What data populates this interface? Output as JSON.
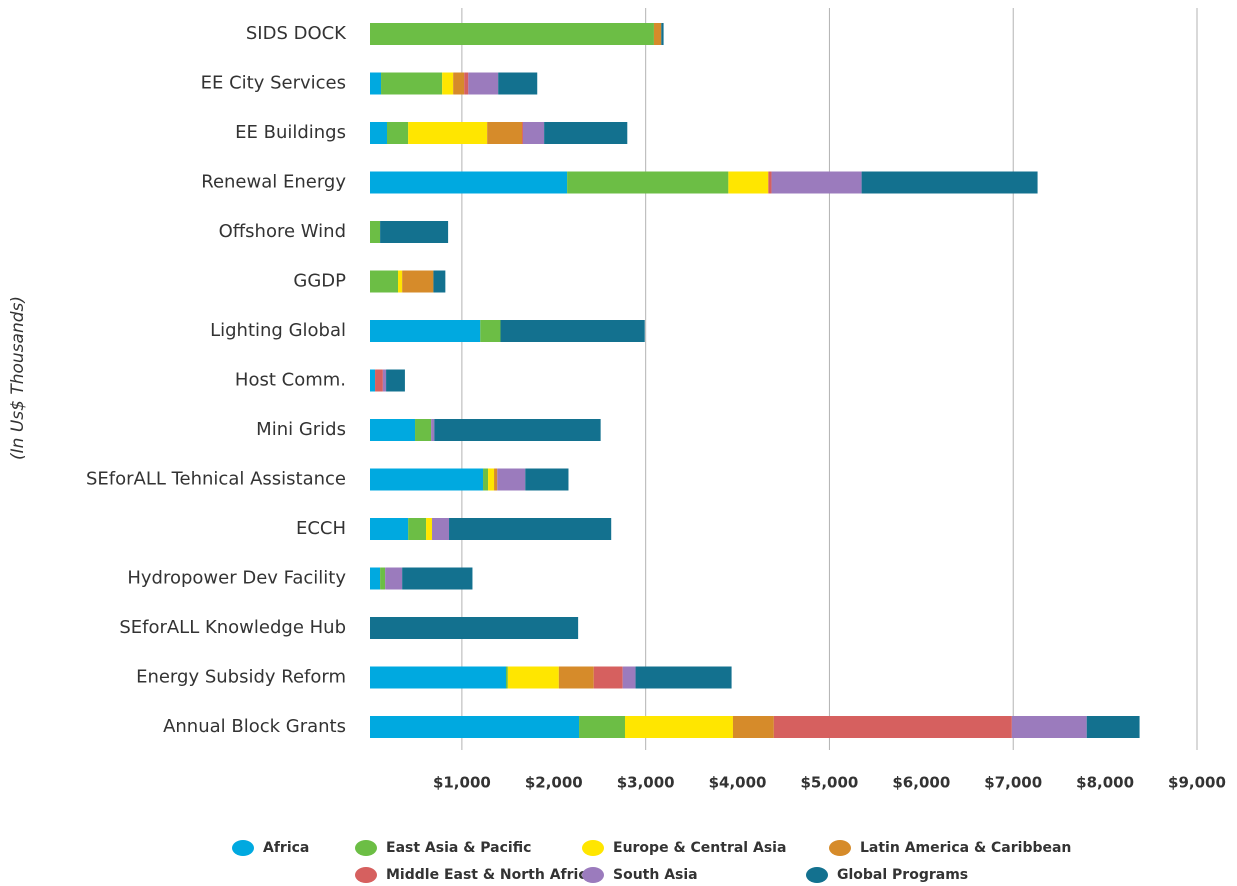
{
  "chart_data": {
    "type": "stacked-barh",
    "ylabel": "(In Us$ Thousands)",
    "categories": [
      "SIDS DOCK",
      "EE City Services",
      "EE Buildings",
      "Renewal Energy",
      "Offshore Wind",
      "GGDP",
      "Lighting Global",
      "Host Comm.",
      "Mini Grids",
      "SEforALL Tehnical Assistance",
      "ECCH",
      "Hydropower Dev Facility",
      "SEforALL Knowledge Hub",
      "Energy Subsidy Reform",
      "Annual Block Grants"
    ],
    "series": [
      {
        "name": "Africa",
        "color": "#00a9e0",
        "values": [
          0,
          120,
          185,
          2145,
          0,
          0,
          1200,
          55,
          490,
          1230,
          415,
          110,
          0,
          1480,
          2275
        ]
      },
      {
        "name": "East Asia & Pacific",
        "color": "#6cbe45",
        "values": [
          3090,
          665,
          230,
          1755,
          110,
          305,
          220,
          0,
          175,
          55,
          195,
          55,
          0,
          20,
          500
        ]
      },
      {
        "name": "Europe & Central Asia",
        "color": "#ffe600",
        "values": [
          0,
          120,
          860,
          435,
          0,
          45,
          0,
          0,
          0,
          65,
          65,
          0,
          0,
          555,
          1175
        ]
      },
      {
        "name": "Latin America & Caribbean",
        "color": "#d68b2a",
        "values": [
          80,
          120,
          380,
          0,
          0,
          340,
          0,
          0,
          0,
          35,
          0,
          0,
          0,
          380,
          445
        ]
      },
      {
        "name": "Middle East & North Africa",
        "color": "#d6605f",
        "values": [
          0,
          45,
          10,
          35,
          0,
          0,
          0,
          85,
          0,
          0,
          0,
          0,
          0,
          315,
          2590
        ]
      },
      {
        "name": "South Asia",
        "color": "#9b7bbd",
        "values": [
          0,
          325,
          230,
          980,
          0,
          0,
          0,
          35,
          35,
          305,
          185,
          185,
          0,
          140,
          815
        ]
      },
      {
        "name": "Global Programs",
        "color": "#13718f",
        "values": [
          25,
          425,
          905,
          1915,
          740,
          130,
          1570,
          205,
          1810,
          470,
          1765,
          765,
          2265,
          1045,
          575
        ]
      }
    ],
    "xlim": [
      0,
      9000
    ],
    "xticks": [
      {
        "value": 1000,
        "label": "$1,000"
      },
      {
        "value": 2000,
        "label": "$2,000"
      },
      {
        "value": 3000,
        "label": "$3,000"
      },
      {
        "value": 4000,
        "label": "$4,000"
      },
      {
        "value": 5000,
        "label": "$5,000"
      },
      {
        "value": 6000,
        "label": "$6,000"
      },
      {
        "value": 7000,
        "label": "$7,000"
      },
      {
        "value": 8000,
        "label": "$8,000"
      },
      {
        "value": 9000,
        "label": "$9,000"
      }
    ],
    "xgrid": [
      1000,
      3000,
      5000,
      7000,
      9000
    ],
    "legend": "bottom"
  }
}
